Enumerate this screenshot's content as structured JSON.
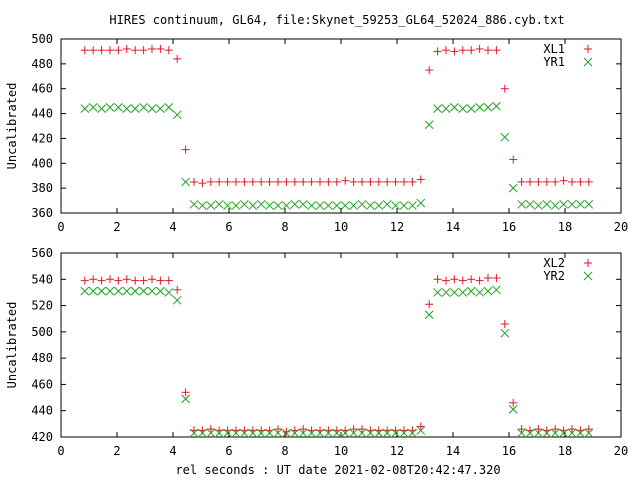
{
  "colors": {
    "red": "#e0182c",
    "green": "#1ea21e",
    "frame": "#000000"
  },
  "chart_data": [
    {
      "type": "scatter",
      "title": "HIRES continuum, GL64, file:Skynet_59253_GL64_52024_886.cyb.txt",
      "xlabel": "",
      "ylabel": "Uncalibrated",
      "xlim": [
        0,
        20
      ],
      "ylim": [
        360,
        500
      ],
      "xticks": [
        0,
        2,
        4,
        6,
        8,
        10,
        12,
        14,
        16,
        18,
        20
      ],
      "yticks": [
        360,
        380,
        400,
        420,
        440,
        460,
        480,
        500
      ],
      "grid": false,
      "legend": "top-right",
      "series": [
        {
          "name": "XL1",
          "marker": "plus",
          "color": "#e0182c",
          "x": [
            0.85,
            1.15,
            1.45,
            1.75,
            2.05,
            2.35,
            2.65,
            2.95,
            3.25,
            3.55,
            3.85,
            4.15,
            4.45,
            4.75,
            5.05,
            5.35,
            5.65,
            5.95,
            6.25,
            6.55,
            6.85,
            7.15,
            7.45,
            7.75,
            8.05,
            8.35,
            8.65,
            8.95,
            9.25,
            9.55,
            9.85,
            10.15,
            10.45,
            10.75,
            11.05,
            11.35,
            11.65,
            11.95,
            12.25,
            12.55,
            12.85,
            13.15,
            13.45,
            13.75,
            14.05,
            14.35,
            14.65,
            14.95,
            15.25,
            15.55,
            15.85,
            16.15,
            16.45,
            16.75,
            17.05,
            17.35,
            17.65,
            17.95,
            18.25,
            18.55,
            18.85
          ],
          "y": [
            491,
            491,
            491,
            491,
            491,
            492,
            491,
            491,
            492,
            492,
            491,
            484,
            411,
            385,
            384,
            385,
            385,
            385,
            385,
            385,
            385,
            385,
            385,
            385,
            385,
            385,
            385,
            385,
            385,
            385,
            385,
            386,
            385,
            385,
            385,
            385,
            385,
            385,
            385,
            385,
            387,
            475,
            490,
            491,
            490,
            491,
            491,
            492,
            491,
            491,
            460,
            403,
            385,
            385,
            385,
            385,
            385,
            386,
            385,
            385,
            385
          ]
        },
        {
          "name": "YR1",
          "marker": "cross",
          "color": "#1ea21e",
          "x": [
            0.85,
            1.15,
            1.45,
            1.75,
            2.05,
            2.35,
            2.65,
            2.95,
            3.25,
            3.55,
            3.85,
            4.15,
            4.45,
            4.75,
            5.05,
            5.35,
            5.65,
            5.95,
            6.25,
            6.55,
            6.85,
            7.15,
            7.45,
            7.75,
            8.05,
            8.35,
            8.65,
            8.95,
            9.25,
            9.55,
            9.85,
            10.15,
            10.45,
            10.75,
            11.05,
            11.35,
            11.65,
            11.95,
            12.25,
            12.55,
            12.85,
            13.15,
            13.45,
            13.75,
            14.05,
            14.35,
            14.65,
            14.95,
            15.25,
            15.55,
            15.85,
            16.15,
            16.45,
            16.75,
            17.05,
            17.35,
            17.65,
            17.95,
            18.25,
            18.55,
            18.85
          ],
          "y": [
            444,
            445,
            444,
            445,
            445,
            444,
            444,
            445,
            444,
            444,
            445,
            439,
            385,
            367,
            366,
            366,
            367,
            366,
            366,
            367,
            366,
            367,
            366,
            366,
            366,
            367,
            367,
            366,
            366,
            366,
            366,
            366,
            366,
            367,
            366,
            366,
            367,
            366,
            366,
            366,
            368,
            431,
            444,
            444,
            445,
            444,
            444,
            445,
            445,
            446,
            421,
            380,
            367,
            367,
            366,
            367,
            366,
            367,
            367,
            367,
            367
          ]
        }
      ]
    },
    {
      "type": "scatter",
      "title": "",
      "xlabel": "rel seconds : UT date 2021-02-08T20:42:47.320",
      "ylabel": "Uncalibrated",
      "xlim": [
        0,
        20
      ],
      "ylim": [
        420,
        560
      ],
      "xticks": [
        0,
        2,
        4,
        6,
        8,
        10,
        12,
        14,
        16,
        18,
        20
      ],
      "yticks": [
        420,
        440,
        460,
        480,
        500,
        520,
        540,
        560
      ],
      "grid": false,
      "legend": "top-right",
      "series": [
        {
          "name": "XL2",
          "marker": "plus",
          "color": "#e0182c",
          "x": [
            0.85,
            1.15,
            1.45,
            1.75,
            2.05,
            2.35,
            2.65,
            2.95,
            3.25,
            3.55,
            3.85,
            4.15,
            4.45,
            4.75,
            5.05,
            5.35,
            5.65,
            5.95,
            6.25,
            6.55,
            6.85,
            7.15,
            7.45,
            7.75,
            8.05,
            8.35,
            8.65,
            8.95,
            9.25,
            9.55,
            9.85,
            10.15,
            10.45,
            10.75,
            11.05,
            11.35,
            11.65,
            11.95,
            12.25,
            12.55,
            12.85,
            13.15,
            13.45,
            13.75,
            14.05,
            14.35,
            14.65,
            14.95,
            15.25,
            15.55,
            15.85,
            16.15,
            16.45,
            16.75,
            17.05,
            17.35,
            17.65,
            17.95,
            18.25,
            18.55,
            18.85
          ],
          "y": [
            539,
            540,
            539,
            540,
            539,
            540,
            539,
            539,
            540,
            539,
            539,
            532,
            454,
            425,
            425,
            426,
            425,
            425,
            425,
            425,
            425,
            425,
            425,
            426,
            424,
            425,
            426,
            425,
            425,
            425,
            425,
            425,
            426,
            426,
            425,
            425,
            425,
            425,
            425,
            425,
            428,
            521,
            540,
            539,
            540,
            539,
            540,
            539,
            541,
            541,
            506,
            446,
            426,
            425,
            426,
            425,
            426,
            425,
            426,
            425,
            426
          ]
        },
        {
          "name": "YR2",
          "marker": "cross",
          "color": "#1ea21e",
          "x": [
            0.85,
            1.15,
            1.45,
            1.75,
            2.05,
            2.35,
            2.65,
            2.95,
            3.25,
            3.55,
            3.85,
            4.15,
            4.45,
            4.75,
            5.05,
            5.35,
            5.65,
            5.95,
            6.25,
            6.55,
            6.85,
            7.15,
            7.45,
            7.75,
            8.05,
            8.35,
            8.65,
            8.95,
            9.25,
            9.55,
            9.85,
            10.15,
            10.45,
            10.75,
            11.05,
            11.35,
            11.65,
            11.95,
            12.25,
            12.55,
            12.85,
            13.15,
            13.45,
            13.75,
            14.05,
            14.35,
            14.65,
            14.95,
            15.25,
            15.55,
            15.85,
            16.15,
            16.45,
            16.75,
            17.05,
            17.35,
            17.65,
            17.95,
            18.25,
            18.55,
            18.85
          ],
          "y": [
            531,
            531,
            531,
            531,
            531,
            531,
            531,
            531,
            531,
            531,
            530,
            524,
            449,
            423,
            423,
            423,
            423,
            423,
            423,
            423,
            423,
            423,
            423,
            423,
            423,
            423,
            423,
            423,
            423,
            423,
            423,
            423,
            423,
            423,
            423,
            423,
            423,
            423,
            423,
            423,
            425,
            513,
            530,
            530,
            530,
            530,
            531,
            530,
            531,
            532,
            499,
            441,
            423,
            423,
            423,
            423,
            423,
            423,
            423,
            423,
            423
          ]
        }
      ]
    }
  ]
}
